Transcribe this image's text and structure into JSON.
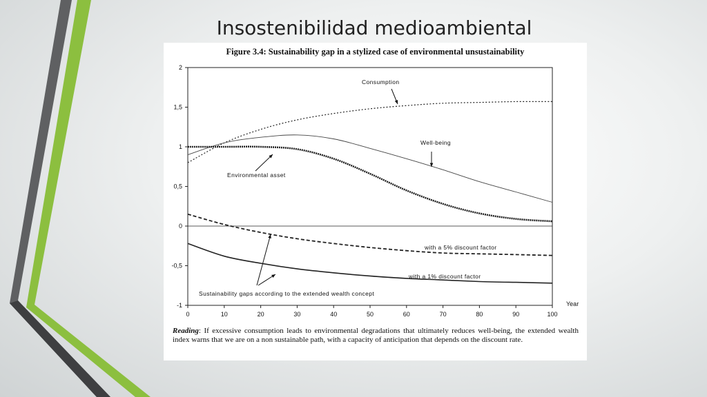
{
  "slide": {
    "title": "Insostenibilidad medioambiental"
  },
  "figure": {
    "title": "Figure 3.4: Sustainability gap in a stylized case of environmental unsustainability",
    "reading_lead": "Reading",
    "reading_text": ": If excessive consumption leads to environmental degradations that ultimately reduces well-being, the extended wealth index warns that we are on a non sustainable path, with a capacity of anticipation that depends on the discount rate."
  },
  "colors": {
    "accent_green": "#8cbf3f",
    "accent_gray": "#5f6062",
    "line": "#222222"
  },
  "chart_data": {
    "type": "line",
    "xlabel": "Year",
    "ylabel": "",
    "xlim": [
      0,
      100
    ],
    "ylim": [
      -1,
      2
    ],
    "x_ticks": [
      0,
      10,
      20,
      30,
      40,
      50,
      60,
      70,
      80,
      90,
      100
    ],
    "y_ticks": [
      2,
      1.5,
      1,
      0.5,
      0,
      -0.5,
      -1
    ],
    "y_tick_labels": [
      "2",
      "1,5",
      "1",
      "0,5",
      "0",
      "-0,5",
      "-1"
    ],
    "x": [
      0,
      10,
      20,
      30,
      40,
      50,
      60,
      70,
      80,
      90,
      100
    ],
    "series": [
      {
        "name": "Consumption",
        "style": "dotted",
        "values": [
          0.8,
          1.05,
          1.22,
          1.34,
          1.42,
          1.48,
          1.52,
          1.55,
          1.56,
          1.57,
          1.57
        ]
      },
      {
        "name": "Well-being",
        "style": "solid-thin",
        "values": [
          0.9,
          1.05,
          1.12,
          1.15,
          1.1,
          0.98,
          0.85,
          0.71,
          0.56,
          0.43,
          0.3
        ]
      },
      {
        "name": "Environmental asset",
        "style": "dotted-bold",
        "values": [
          1.0,
          1.0,
          1.0,
          0.97,
          0.85,
          0.66,
          0.45,
          0.28,
          0.16,
          0.09,
          0.06
        ]
      },
      {
        "name": "with a 5% discount factor",
        "style": "dashed",
        "values": [
          0.15,
          0.02,
          -0.08,
          -0.16,
          -0.22,
          -0.27,
          -0.31,
          -0.34,
          -0.35,
          -0.36,
          -0.37
        ]
      },
      {
        "name": "with a 1% discount factor",
        "style": "solid-thick",
        "values": [
          -0.22,
          -0.38,
          -0.47,
          -0.54,
          -0.59,
          -0.63,
          -0.66,
          -0.68,
          -0.7,
          -0.71,
          -0.72
        ]
      }
    ],
    "annotations": [
      "Consumption",
      "Well-being",
      "Environmental asset",
      "with a 5% discount factor",
      "with a 1% discount factor",
      "Sustainability gaps according to the extended wealth concept"
    ]
  }
}
